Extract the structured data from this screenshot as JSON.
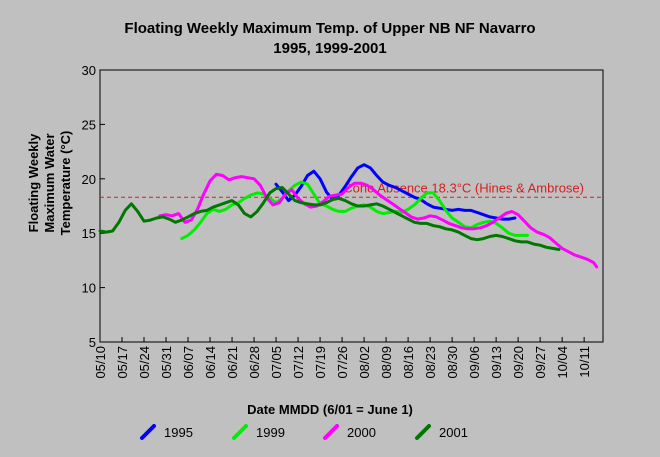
{
  "chart_data": {
    "type": "line",
    "title": "Floating Weekly Maximum Temp. of Upper NB NF Navarro",
    "subtitle": "1995, 1999-2001",
    "xlabel": "Date MMDD (6/01 = June 1)",
    "ylabel": "Floating Weekly Maximum Water Temperature (°C)",
    "ylabel_lines": [
      "Floating Weekly",
      "Maximum Water",
      "Temperature (°C)"
    ],
    "ylim": [
      5,
      30
    ],
    "yticks": [
      5,
      10,
      15,
      20,
      25,
      30
    ],
    "xlim": [
      "05/10",
      "10/17"
    ],
    "xticks": [
      "05/10",
      "05/17",
      "05/24",
      "05/31",
      "06/07",
      "06/14",
      "06/21",
      "06/28",
      "07/05",
      "07/12",
      "07/19",
      "07/26",
      "08/02",
      "08/09",
      "08/16",
      "08/23",
      "08/30",
      "09/06",
      "09/13",
      "09/20",
      "09/27",
      "10/04",
      "10/11"
    ],
    "grid": false,
    "legend_position": "bottom",
    "reference_line": {
      "value": 18.3,
      "label": "Coho Absence 18.3°C (Hines & Ambrose)",
      "color": "#d62020"
    },
    "series": [
      {
        "name": "1995",
        "color": "#0000ff",
        "points": [
          [
            "07/05",
            19.5
          ],
          [
            "07/07",
            18.8
          ],
          [
            "07/09",
            18.0
          ],
          [
            "07/11",
            18.5
          ],
          [
            "07/13",
            19.3
          ],
          [
            "07/15",
            20.3
          ],
          [
            "07/17",
            20.7
          ],
          [
            "07/19",
            20.0
          ],
          [
            "07/21",
            18.8
          ],
          [
            "07/23",
            18.1
          ],
          [
            "07/25",
            18.5
          ],
          [
            "07/27",
            19.3
          ],
          [
            "07/29",
            20.2
          ],
          [
            "07/31",
            21.0
          ],
          [
            "08/02",
            21.3
          ],
          [
            "08/04",
            21.0
          ],
          [
            "08/06",
            20.3
          ],
          [
            "08/08",
            19.7
          ],
          [
            "08/10",
            19.4
          ],
          [
            "08/12",
            19.2
          ],
          [
            "08/14",
            18.9
          ],
          [
            "08/16",
            18.6
          ],
          [
            "08/18",
            18.3
          ],
          [
            "08/20",
            18.1
          ],
          [
            "08/22",
            17.7
          ],
          [
            "08/24",
            17.4
          ],
          [
            "08/26",
            17.3
          ],
          [
            "08/28",
            17.2
          ],
          [
            "08/30",
            17.1
          ],
          [
            "09/01",
            17.2
          ],
          [
            "09/03",
            17.1
          ],
          [
            "09/05",
            17.1
          ],
          [
            "09/07",
            16.9
          ],
          [
            "09/09",
            16.7
          ],
          [
            "09/11",
            16.5
          ],
          [
            "09/13",
            16.4
          ],
          [
            "09/15",
            16.3
          ],
          [
            "09/17",
            16.3
          ],
          [
            "09/19",
            16.4
          ]
        ]
      },
      {
        "name": "1999",
        "color": "#00ee00",
        "points": [
          [
            "06/05",
            14.5
          ],
          [
            "06/07",
            14.8
          ],
          [
            "06/09",
            15.3
          ],
          [
            "06/11",
            16.0
          ],
          [
            "06/13",
            16.8
          ],
          [
            "06/15",
            17.2
          ],
          [
            "06/17",
            17.0
          ],
          [
            "06/19",
            17.2
          ],
          [
            "06/21",
            17.6
          ],
          [
            "06/23",
            17.8
          ],
          [
            "06/25",
            18.2
          ],
          [
            "06/27",
            18.5
          ],
          [
            "06/29",
            18.7
          ],
          [
            "07/01",
            18.6
          ],
          [
            "07/03",
            18.2
          ],
          [
            "07/05",
            17.8
          ],
          [
            "07/07",
            18.2
          ],
          [
            "07/09",
            18.9
          ],
          [
            "07/11",
            19.4
          ],
          [
            "07/13",
            19.7
          ],
          [
            "07/15",
            19.5
          ],
          [
            "07/17",
            18.6
          ],
          [
            "07/19",
            17.7
          ],
          [
            "07/21",
            17.5
          ],
          [
            "07/23",
            17.2
          ],
          [
            "07/25",
            17.0
          ],
          [
            "07/27",
            17.0
          ],
          [
            "07/29",
            17.3
          ],
          [
            "07/31",
            17.5
          ],
          [
            "08/02",
            17.6
          ],
          [
            "08/04",
            17.4
          ],
          [
            "08/06",
            17.0
          ],
          [
            "08/08",
            16.8
          ],
          [
            "08/10",
            16.9
          ],
          [
            "08/12",
            17.0
          ],
          [
            "08/14",
            16.9
          ],
          [
            "08/16",
            17.2
          ],
          [
            "08/18",
            17.6
          ],
          [
            "08/20",
            18.2
          ],
          [
            "08/22",
            18.7
          ],
          [
            "08/24",
            18.7
          ],
          [
            "08/26",
            18.0
          ],
          [
            "08/28",
            17.1
          ],
          [
            "08/30",
            16.4
          ],
          [
            "09/01",
            16.0
          ],
          [
            "09/03",
            15.6
          ],
          [
            "09/05",
            15.5
          ],
          [
            "09/07",
            15.8
          ],
          [
            "09/09",
            16.0
          ],
          [
            "09/11",
            16.1
          ],
          [
            "09/13",
            15.9
          ],
          [
            "09/15",
            15.5
          ],
          [
            "09/17",
            15.0
          ],
          [
            "09/19",
            14.8
          ],
          [
            "09/21",
            14.8
          ],
          [
            "09/23",
            14.8
          ]
        ]
      },
      {
        "name": "2000",
        "color": "#ff00ff",
        "points": [
          [
            "05/29",
            16.6
          ],
          [
            "05/31",
            16.7
          ],
          [
            "06/02",
            16.6
          ],
          [
            "06/04",
            16.8
          ],
          [
            "06/06",
            16.0
          ],
          [
            "06/08",
            16.2
          ],
          [
            "06/10",
            17.2
          ],
          [
            "06/12",
            18.6
          ],
          [
            "06/14",
            19.8
          ],
          [
            "06/16",
            20.4
          ],
          [
            "06/18",
            20.3
          ],
          [
            "06/20",
            19.9
          ],
          [
            "06/22",
            20.1
          ],
          [
            "06/24",
            20.2
          ],
          [
            "06/26",
            20.1
          ],
          [
            "06/28",
            20.0
          ],
          [
            "06/30",
            19.4
          ],
          [
            "07/02",
            18.3
          ],
          [
            "07/04",
            17.6
          ],
          [
            "07/06",
            17.8
          ],
          [
            "07/08",
            18.6
          ],
          [
            "07/10",
            19.0
          ],
          [
            "07/12",
            18.2
          ],
          [
            "07/14",
            17.7
          ],
          [
            "07/16",
            17.4
          ],
          [
            "07/18",
            17.5
          ],
          [
            "07/20",
            17.9
          ],
          [
            "07/22",
            18.4
          ],
          [
            "07/24",
            18.5
          ],
          [
            "07/26",
            18.6
          ],
          [
            "07/28",
            19.2
          ],
          [
            "07/30",
            19.6
          ],
          [
            "08/01",
            19.6
          ],
          [
            "08/03",
            19.4
          ],
          [
            "08/05",
            19.0
          ],
          [
            "08/07",
            18.5
          ],
          [
            "08/09",
            18.1
          ],
          [
            "08/11",
            17.7
          ],
          [
            "08/13",
            17.3
          ],
          [
            "08/15",
            16.9
          ],
          [
            "08/17",
            16.5
          ],
          [
            "08/19",
            16.3
          ],
          [
            "08/21",
            16.4
          ],
          [
            "08/23",
            16.6
          ],
          [
            "08/25",
            16.5
          ],
          [
            "08/27",
            16.2
          ],
          [
            "08/29",
            15.9
          ],
          [
            "08/31",
            15.7
          ],
          [
            "09/02",
            15.5
          ],
          [
            "09/04",
            15.4
          ],
          [
            "09/06",
            15.4
          ],
          [
            "09/08",
            15.5
          ],
          [
            "09/10",
            15.7
          ],
          [
            "09/12",
            16.0
          ],
          [
            "09/14",
            16.4
          ],
          [
            "09/16",
            16.8
          ],
          [
            "09/18",
            17.0
          ],
          [
            "09/20",
            16.7
          ],
          [
            "09/22",
            16.1
          ],
          [
            "09/24",
            15.5
          ],
          [
            "09/26",
            15.1
          ],
          [
            "09/28",
            14.9
          ],
          [
            "09/30",
            14.6
          ],
          [
            "10/02",
            14.1
          ],
          [
            "10/04",
            13.6
          ],
          [
            "10/06",
            13.3
          ],
          [
            "10/08",
            13.0
          ],
          [
            "10/10",
            12.8
          ],
          [
            "10/12",
            12.6
          ],
          [
            "10/14",
            12.3
          ],
          [
            "10/15",
            11.9
          ]
        ]
      },
      {
        "name": "2001",
        "color": "#007700",
        "points": [
          [
            "05/10",
            15.2
          ],
          [
            "05/12",
            15.1
          ],
          [
            "05/14",
            15.2
          ],
          [
            "05/16",
            16.0
          ],
          [
            "05/18",
            17.1
          ],
          [
            "05/20",
            17.7
          ],
          [
            "05/22",
            17.0
          ],
          [
            "05/24",
            16.1
          ],
          [
            "05/26",
            16.2
          ],
          [
            "05/28",
            16.4
          ],
          [
            "05/30",
            16.5
          ],
          [
            "06/01",
            16.3
          ],
          [
            "06/03",
            16.0
          ],
          [
            "06/05",
            16.2
          ],
          [
            "06/07",
            16.5
          ],
          [
            "06/09",
            16.8
          ],
          [
            "06/11",
            17.0
          ],
          [
            "06/13",
            17.1
          ],
          [
            "06/15",
            17.4
          ],
          [
            "06/17",
            17.6
          ],
          [
            "06/19",
            17.8
          ],
          [
            "06/21",
            18.0
          ],
          [
            "06/23",
            17.6
          ],
          [
            "06/25",
            16.8
          ],
          [
            "06/27",
            16.5
          ],
          [
            "06/29",
            17.0
          ],
          [
            "07/01",
            17.8
          ],
          [
            "07/03",
            18.7
          ],
          [
            "07/05",
            19.1
          ],
          [
            "07/07",
            19.2
          ],
          [
            "07/09",
            18.6
          ],
          [
            "07/11",
            18.0
          ],
          [
            "07/13",
            17.8
          ],
          [
            "07/15",
            17.7
          ],
          [
            "07/17",
            17.6
          ],
          [
            "07/19",
            17.6
          ],
          [
            "07/21",
            17.8
          ],
          [
            "07/23",
            18.1
          ],
          [
            "07/25",
            18.2
          ],
          [
            "07/27",
            18.0
          ],
          [
            "07/29",
            17.7
          ],
          [
            "07/31",
            17.5
          ],
          [
            "08/02",
            17.5
          ],
          [
            "08/04",
            17.6
          ],
          [
            "08/06",
            17.7
          ],
          [
            "08/08",
            17.5
          ],
          [
            "08/10",
            17.2
          ],
          [
            "08/12",
            16.9
          ],
          [
            "08/14",
            16.6
          ],
          [
            "08/16",
            16.3
          ],
          [
            "08/18",
            16.0
          ],
          [
            "08/20",
            15.9
          ],
          [
            "08/22",
            15.9
          ],
          [
            "08/24",
            15.7
          ],
          [
            "08/26",
            15.6
          ],
          [
            "08/28",
            15.4
          ],
          [
            "08/30",
            15.3
          ],
          [
            "09/01",
            15.1
          ],
          [
            "09/03",
            14.8
          ],
          [
            "09/05",
            14.5
          ],
          [
            "09/07",
            14.4
          ],
          [
            "09/09",
            14.5
          ],
          [
            "09/11",
            14.7
          ],
          [
            "09/13",
            14.8
          ],
          [
            "09/15",
            14.7
          ],
          [
            "09/17",
            14.5
          ],
          [
            "09/19",
            14.3
          ],
          [
            "09/21",
            14.2
          ],
          [
            "09/23",
            14.2
          ],
          [
            "09/25",
            14.0
          ],
          [
            "09/27",
            13.9
          ],
          [
            "09/29",
            13.7
          ],
          [
            "10/01",
            13.6
          ],
          [
            "10/03",
            13.5
          ]
        ]
      }
    ]
  }
}
